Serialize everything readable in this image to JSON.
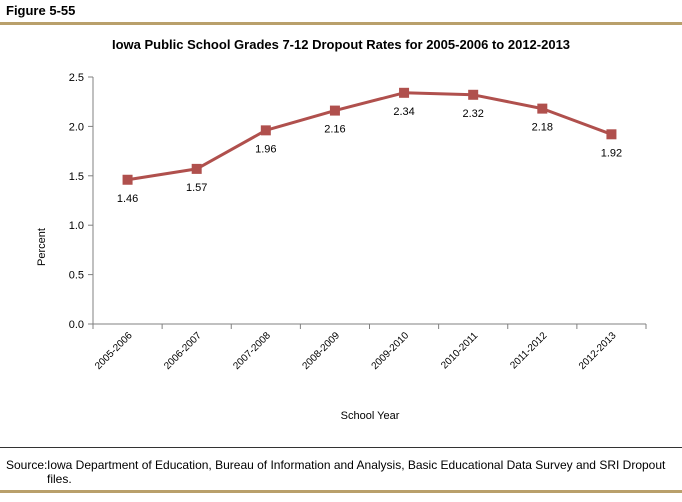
{
  "figure_label": "Figure 5-55",
  "source": {
    "label": "Source:",
    "text": "Iowa Department of Education, Bureau of Information and Analysis, Basic Educational Data Survey and SRI Dropout files."
  },
  "colors": {
    "series": "#b0504d",
    "rule": "#b9a06b",
    "axis": "#808080"
  },
  "chart_data": {
    "type": "line",
    "title": "Iowa Public School Grades 7-12 Dropout Rates for 2005-2006 to 2012-2013",
    "xlabel": "School Year",
    "ylabel": "Percent",
    "categories": [
      "2005-2006",
      "2006-2007",
      "2007-2008",
      "2008-2009",
      "2009-2010",
      "2010-2011",
      "2011-2012",
      "2012-2013"
    ],
    "values": [
      1.46,
      1.57,
      1.96,
      2.16,
      2.34,
      2.32,
      2.18,
      1.92
    ],
    "data_labels": [
      "1.46",
      "1.57",
      "1.96",
      "2.16",
      "2.34",
      "2.32",
      "2.18",
      "1.92"
    ],
    "ylim": [
      0,
      2.5
    ],
    "yticks": [
      "0.0",
      "0.5",
      "1.0",
      "1.5",
      "2.0",
      "2.5"
    ],
    "grid": false,
    "legend": "none",
    "marker": "square"
  }
}
